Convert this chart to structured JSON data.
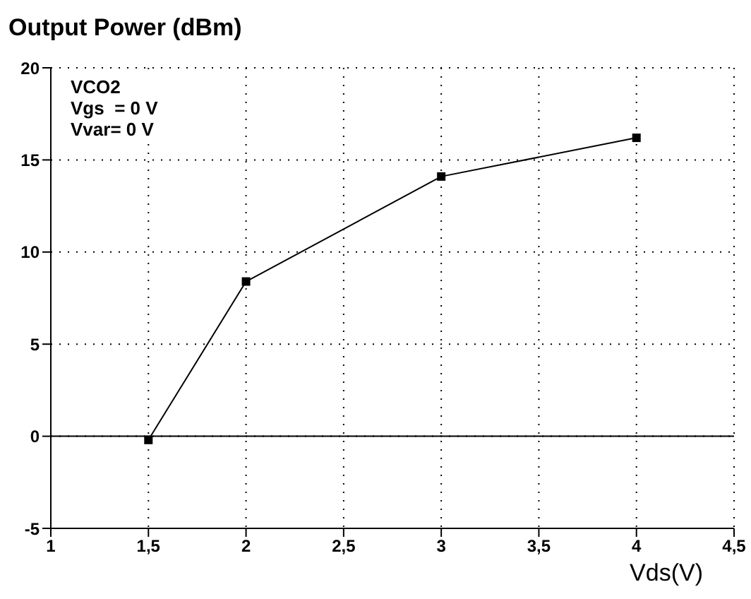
{
  "chart_data": {
    "type": "line",
    "title": "Output Power (dBm)",
    "xlabel": "Vds(V)",
    "annotations": [
      "VCO2",
      "Vgs  = 0 V",
      "Vvar= 0 V"
    ],
    "x": [
      1.5,
      2,
      3,
      4
    ],
    "series": [
      {
        "color": "#000000",
        "values": [
          -0.2,
          8.4,
          14.1,
          16.2
        ]
      }
    ],
    "xlim": [
      1,
      4.5
    ],
    "xticks": [
      1,
      {
        "value": 1.5,
        "label": "1,5"
      },
      2,
      {
        "value": 2.5,
        "label": "2,5"
      },
      3,
      {
        "value": 3.5,
        "label": "3,5"
      },
      4,
      {
        "value": 4.5,
        "label": "4,5"
      }
    ],
    "ylim": [
      -5,
      20
    ],
    "yticks": [
      -5,
      0,
      5,
      10,
      15,
      20
    ],
    "ref_lines": [
      {
        "axis": "y",
        "value": 0,
        "color": "#000000"
      }
    ],
    "grid": true,
    "marker": "square",
    "line_style": "solid"
  }
}
